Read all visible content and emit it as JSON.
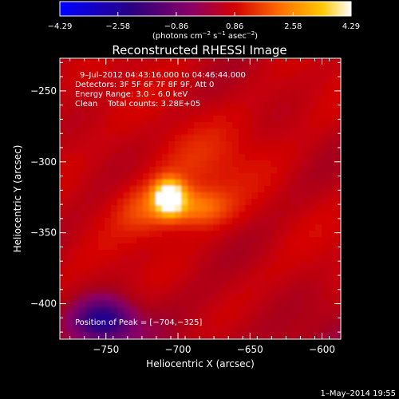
{
  "chart_data": {
    "type": "heatmap",
    "title": "Reconstructed RHESSI Image",
    "xlabel": "Heliocentric X (arcsec)",
    "ylabel": "Heliocentric Y (arcsec)",
    "xlim": [
      -782,
      -587
    ],
    "ylim": [
      -425,
      -227
    ],
    "xticks": [
      -750,
      -700,
      -650,
      -600
    ],
    "xtick_labels": [
      "−750",
      "−700",
      "−650",
      "−600"
    ],
    "yticks": [
      -250,
      -300,
      -350,
      -400
    ],
    "ytick_labels": [
      "−250",
      "−300",
      "−350",
      "−400"
    ],
    "info_lines": [
      "9–Jul–2012 04:43:16.000 to 04:46:44.000",
      "Detectors: 3F 5F 6F 7F 8F 9F, Att 0",
      "Energy Range: 3.0 – 6.0 keV",
      "Clean    Total counts: 3.28E+05"
    ],
    "peak_label": "Position of Peak = [−704,−325]",
    "peak": {
      "x": -704,
      "y": -325
    },
    "colorbar": {
      "range": [
        -4.29,
        4.29
      ],
      "ticks": [
        -4.29,
        -2.58,
        -0.86,
        0.86,
        2.58,
        4.29
      ],
      "tick_labels": [
        "−4.29",
        "−2.58",
        "−0.86",
        "0.86",
        "2.58",
        "4.29"
      ],
      "unit_main": "(photons cm",
      "unit_sup1": "−2",
      "unit_mid": " s",
      "unit_sup2": "−1",
      "unit_mid2": " asec",
      "unit_sup3": "−2",
      "unit_end": ")",
      "colormap": "blue-purple-red-orange-yellow-white"
    },
    "intensity_sources": [
      {
        "x": -706,
        "y": -325,
        "amp": 4.29,
        "sx": 7,
        "sy": 8
      },
      {
        "x": -688,
        "y": -332,
        "amp": 1.6,
        "sx": 16,
        "sy": 9
      },
      {
        "x": -722,
        "y": -334,
        "amp": 0.9,
        "sx": 14,
        "sy": 12
      },
      {
        "x": -690,
        "y": -305,
        "amp": 0.6,
        "sx": 30,
        "sy": 25
      }
    ],
    "background_level": 0.6,
    "low_region": {
      "x": -752,
      "y": -412,
      "amp": -2.8,
      "sx": 14,
      "sy": 10
    }
  },
  "footer": {
    "date": "1–May–2014 19:55"
  }
}
